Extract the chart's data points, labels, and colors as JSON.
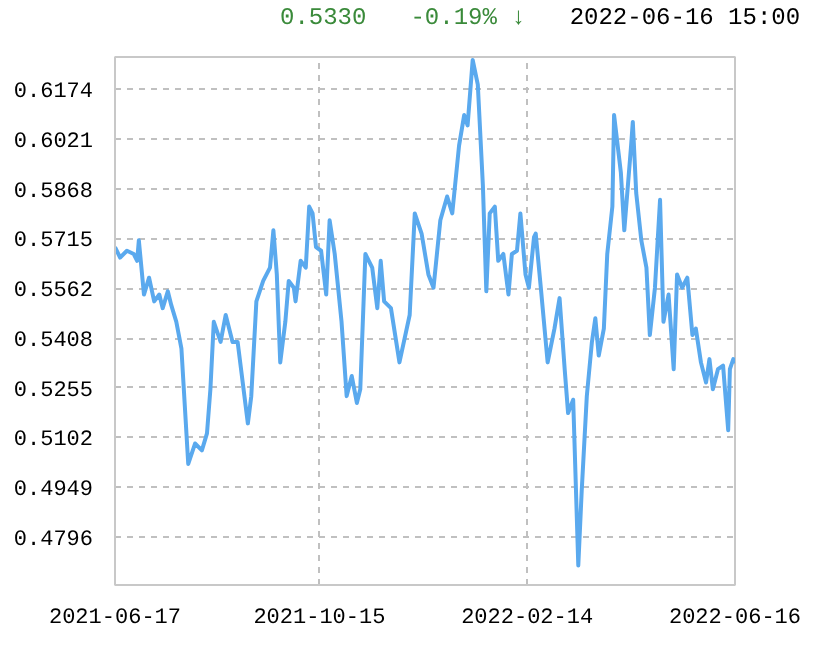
{
  "chart_data": {
    "type": "line",
    "annotations": [
      "0.5330",
      "-0.19% ↓",
      "2022-06-16 15:00"
    ],
    "x": [
      "2021-06-17",
      "2021-06-20",
      "2021-06-24",
      "2021-06-28",
      "2021-06-30",
      "2021-07-01",
      "2021-07-04",
      "2021-07-07",
      "2021-07-10",
      "2021-07-13",
      "2021-07-15",
      "2021-07-18",
      "2021-07-20",
      "2021-07-23",
      "2021-07-26",
      "2021-07-30",
      "2021-08-03",
      "2021-08-07",
      "2021-08-10",
      "2021-08-12",
      "2021-08-14",
      "2021-08-18",
      "2021-08-21",
      "2021-08-25",
      "2021-08-28",
      "2021-09-03",
      "2021-09-05",
      "2021-09-08",
      "2021-09-12",
      "2021-09-16",
      "2021-09-18",
      "2021-09-20",
      "2021-09-22",
      "2021-09-25",
      "2021-09-27",
      "2021-09-30",
      "2021-10-01",
      "2021-10-04",
      "2021-10-07",
      "2021-10-09",
      "2021-10-11",
      "2021-10-13",
      "2021-10-16",
      "2021-10-19",
      "2021-10-21",
      "2021-10-24",
      "2021-10-28",
      "2021-10-31",
      "2021-11-03",
      "2021-11-06",
      "2021-11-08",
      "2021-11-11",
      "2021-11-15",
      "2021-11-18",
      "2021-11-20",
      "2021-11-22",
      "2021-11-26",
      "2021-12-01",
      "2021-12-07",
      "2021-12-10",
      "2021-12-14",
      "2021-12-18",
      "2021-12-21",
      "2021-12-25",
      "2021-12-29",
      "2022-01-01",
      "2022-01-05",
      "2022-01-08",
      "2022-01-10",
      "2022-01-13",
      "2022-01-16",
      "2022-01-19",
      "2022-01-21",
      "2022-01-23",
      "2022-01-26",
      "2022-01-28",
      "2022-01-31",
      "2022-02-03",
      "2022-02-05",
      "2022-02-08",
      "2022-02-10",
      "2022-02-13",
      "2022-02-15",
      "2022-02-18",
      "2022-02-19",
      "2022-02-22",
      "2022-02-26",
      "2022-03-02",
      "2022-03-05",
      "2022-03-08",
      "2022-03-10",
      "2022-03-13",
      "2022-03-16",
      "2022-03-18",
      "2022-03-21",
      "2022-03-24",
      "2022-03-26",
      "2022-03-28",
      "2022-03-31",
      "2022-04-02",
      "2022-04-05",
      "2022-04-06",
      "2022-04-10",
      "2022-04-12",
      "2022-04-16",
      "2022-04-17",
      "2022-04-19",
      "2022-04-22",
      "2022-04-25",
      "2022-04-27",
      "2022-04-30",
      "2022-05-03",
      "2022-05-05",
      "2022-05-08",
      "2022-05-11",
      "2022-05-13",
      "2022-05-16",
      "2022-05-19",
      "2022-05-22",
      "2022-05-24",
      "2022-05-27",
      "2022-05-30",
      "2022-06-01",
      "2022-06-03",
      "2022-06-06",
      "2022-06-09",
      "2022-06-12",
      "2022-06-13",
      "2022-06-15",
      "2022-06-16"
    ],
    "series": [
      {
        "color": "#5aa9ee",
        "values": [
          0.5688,
          0.5656,
          0.5677,
          0.5667,
          0.5646,
          0.5709,
          0.5542,
          0.5594,
          0.5521,
          0.5542,
          0.55,
          0.5552,
          0.551,
          0.5458,
          0.5375,
          0.502,
          0.5083,
          0.5062,
          0.5114,
          0.525,
          0.5458,
          0.5396,
          0.5479,
          0.5396,
          0.5396,
          0.5145,
          0.5229,
          0.5521,
          0.5584,
          0.5625,
          0.574,
          0.5604,
          0.5333,
          0.5458,
          0.5584,
          0.5563,
          0.5521,
          0.5646,
          0.5625,
          0.5813,
          0.5792,
          0.5688,
          0.5677,
          0.5542,
          0.5771,
          0.5667,
          0.5458,
          0.5229,
          0.5291,
          0.5208,
          0.525,
          0.5667,
          0.5625,
          0.55,
          0.5646,
          0.5521,
          0.55,
          0.5333,
          0.5479,
          0.5792,
          0.573,
          0.5604,
          0.5563,
          0.5771,
          0.5844,
          0.5792,
          0.6001,
          0.6095,
          0.6063,
          0.6265,
          0.6189,
          0.5876,
          0.5552,
          0.5792,
          0.5813,
          0.5646,
          0.5667,
          0.5542,
          0.5667,
          0.5677,
          0.5792,
          0.5604,
          0.5563,
          0.5719,
          0.573,
          0.5563,
          0.5333,
          0.5437,
          0.5531,
          0.5312,
          0.5177,
          0.5218,
          0.4707,
          0.4937,
          0.5229,
          0.5396,
          0.5469,
          0.5354,
          0.5437,
          0.5667,
          0.5813,
          0.6095,
          0.5917,
          0.574,
          0.6001,
          0.6074,
          0.5855,
          0.5709,
          0.5625,
          0.5417,
          0.5563,
          0.5834,
          0.5458,
          0.5542,
          0.5312,
          0.5604,
          0.5563,
          0.5594,
          0.5417,
          0.5437,
          0.5333,
          0.5271,
          0.5343,
          0.525,
          0.5312,
          0.5323,
          0.5124,
          0.5312,
          0.5343,
          0.533
        ]
      }
    ],
    "xlim": [
      "2021-06-17",
      "2022-06-16"
    ],
    "xticks": [
      "2021-06-17",
      "2021-10-15",
      "2022-02-14",
      "2022-06-16"
    ],
    "ylim": [
      0.4647,
      0.6274
    ],
    "yticks": [
      0.4796,
      0.4949,
      0.5102,
      0.5255,
      0.5408,
      0.5562,
      0.5715,
      0.5868,
      0.6021,
      0.6174
    ],
    "grid": true,
    "marker": "none",
    "line_style": "solid"
  }
}
